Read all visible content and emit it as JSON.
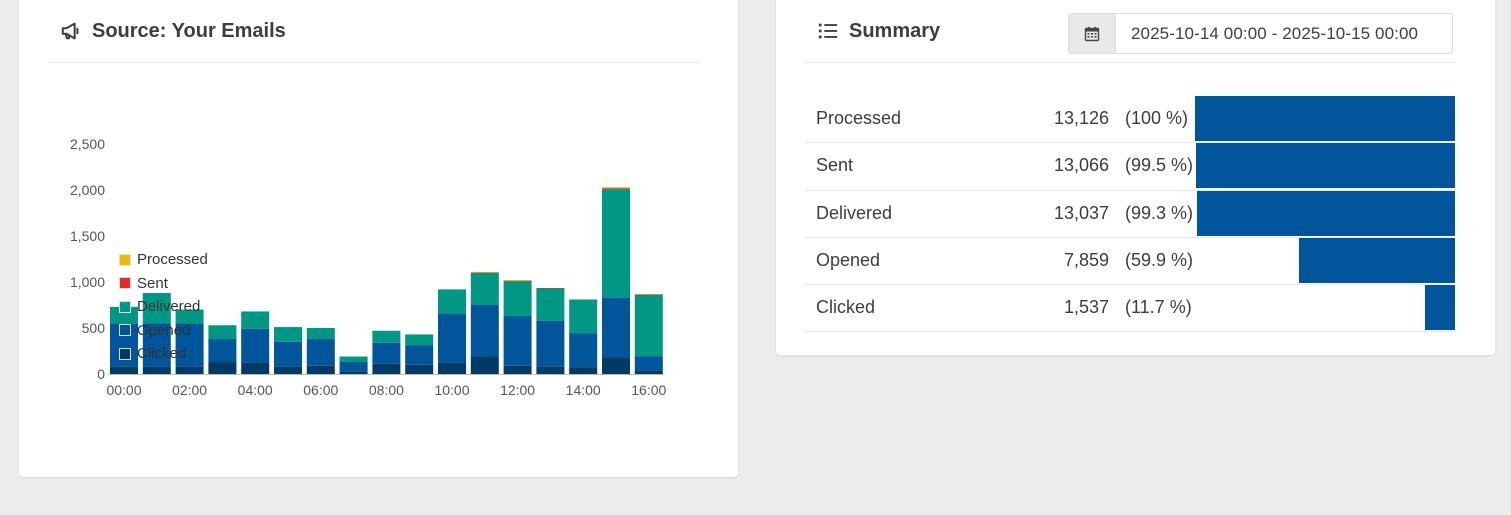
{
  "source_card": {
    "title": "Source: Your Emails",
    "icon": "megaphone-icon"
  },
  "summary_card": {
    "title": "Summary",
    "icon": "list-icon",
    "date_icon": "calendar-icon",
    "date_range": "2025-10-14 00:00 - 2025-10-15 00:00",
    "rows": [
      {
        "label": "Processed",
        "count": "13,126",
        "pct": "(100 %)",
        "fraction": 1.0
      },
      {
        "label": "Sent",
        "count": "13,066",
        "pct": "(99.5 %)",
        "fraction": 0.995
      },
      {
        "label": "Delivered",
        "count": "13,037",
        "pct": "(99.3 %)",
        "fraction": 0.993
      },
      {
        "label": "Opened",
        "count": "7,859",
        "pct": "(59.9 %)",
        "fraction": 0.599
      },
      {
        "label": "Clicked",
        "count": "1,537",
        "pct": "(11.7 %)",
        "fraction": 0.117
      }
    ],
    "bar_color": "#00559b"
  },
  "chart_data": {
    "type": "bar",
    "stacked": true,
    "categories": [
      "00:00",
      "01:00",
      "02:00",
      "03:00",
      "04:00",
      "05:00",
      "06:00",
      "07:00",
      "08:00",
      "09:00",
      "10:00",
      "11:00",
      "12:00",
      "13:00",
      "14:00",
      "15:00",
      "16:00"
    ],
    "x_tick_labels": [
      "00:00",
      "02:00",
      "04:00",
      "06:00",
      "08:00",
      "10:00",
      "12:00",
      "14:00",
      "16:00"
    ],
    "y_tick_labels": [
      "0",
      "500",
      "1,000",
      "1,500",
      "2,000",
      "2,500"
    ],
    "ylim": [
      0,
      2500
    ],
    "legend_position": "left-inside",
    "series": [
      {
        "name": "Clicked",
        "color": "#003a66",
        "values": [
          80,
          80,
          80,
          130,
          120,
          80,
          90,
          30,
          110,
          100,
          120,
          190,
          90,
          80,
          70,
          180,
          40
        ]
      },
      {
        "name": "Opened",
        "color": "#00559b",
        "values": [
          470,
          470,
          470,
          250,
          370,
          270,
          290,
          100,
          230,
          210,
          540,
          560,
          540,
          500,
          370,
          650,
          150
        ]
      },
      {
        "name": "Delivered",
        "color": "#009885",
        "values": [
          180,
          330,
          150,
          150,
          190,
          160,
          120,
          60,
          130,
          120,
          260,
          350,
          380,
          350,
          370,
          1180,
          670
        ]
      },
      {
        "name": "Sent",
        "color": "#e8282b",
        "values": [
          0,
          0,
          0,
          0,
          0,
          0,
          0,
          0,
          0,
          0,
          0,
          5,
          5,
          5,
          0,
          10,
          5
        ]
      },
      {
        "name": "Processed",
        "color": "#f5b800",
        "values": [
          0,
          0,
          0,
          0,
          0,
          0,
          0,
          0,
          0,
          0,
          0,
          5,
          5,
          0,
          0,
          10,
          5
        ]
      }
    ],
    "legend_order": [
      "Processed",
      "Sent",
      "Delivered",
      "Opened",
      "Clicked"
    ]
  }
}
